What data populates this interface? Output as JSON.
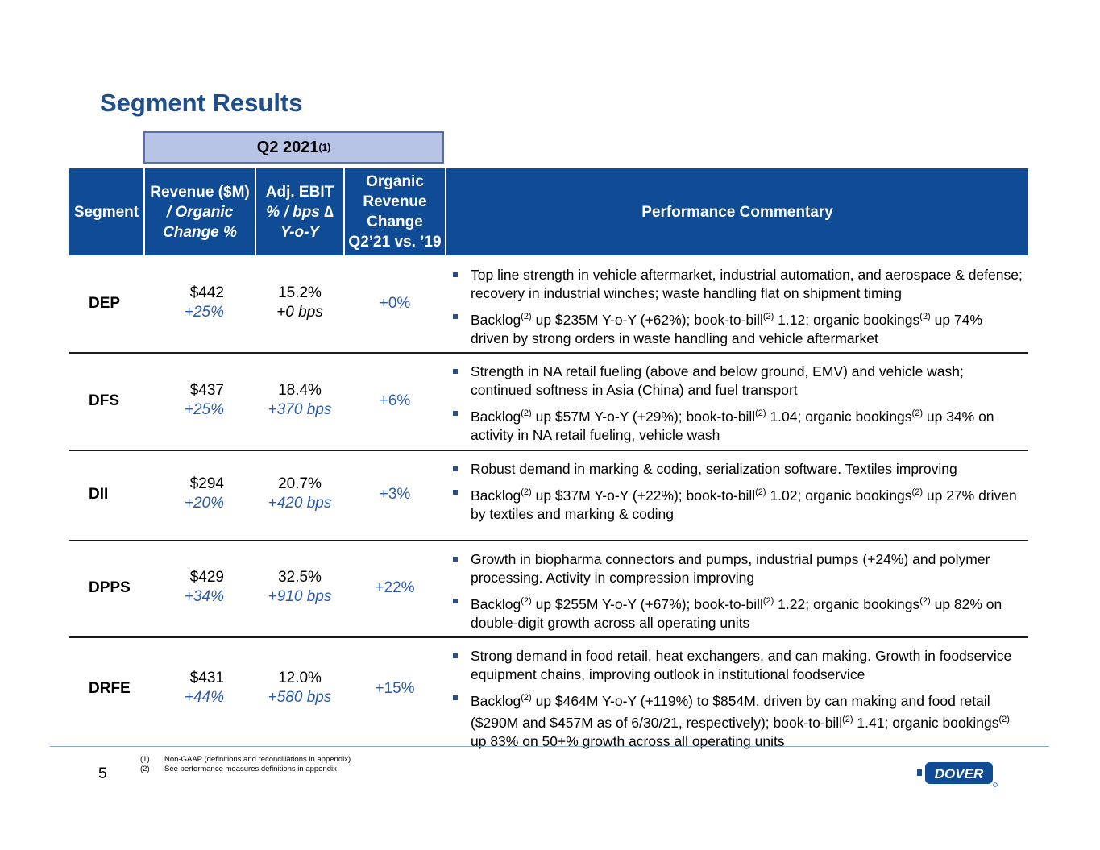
{
  "title": "Segment Results",
  "period": {
    "label": "Q2 2021",
    "note": "(1)"
  },
  "header": {
    "segment": "Segment",
    "revenue_line1": "Revenue ($M)",
    "revenue_line2": "/ Organic",
    "revenue_line3": "Change %",
    "ebit_line1": "Adj. EBIT",
    "ebit_line2": "% / bps ∆",
    "ebit_line3": "Y-o-Y",
    "organic_line1": "Organic",
    "organic_line2": "Revenue",
    "organic_line3": "Change",
    "organic_line4": "Q2’21 vs. ’19",
    "commentary": "Performance Commentary"
  },
  "rows": [
    {
      "segment": "DEP",
      "revenue": "$442",
      "organic_change": "+25%",
      "ebit": "15.2%",
      "ebit_bps": "+0 bps",
      "organic_vs19": "+0%",
      "b1": "Top line strength in vehicle aftermarket, industrial automation, and aerospace & defense; recovery in industrial winches; waste handling flat on shipment timing",
      "b2a": "Backlog",
      "b2b": " up $235M Y-o-Y (+62%); book-to-bill",
      "b2c": " 1.12; organic bookings",
      "b2d": " up 74% driven by strong orders in waste handling and vehicle aftermarket"
    },
    {
      "segment": "DFS",
      "revenue": "$437",
      "organic_change": "+25%",
      "ebit": "18.4%",
      "ebit_bps": "+370 bps",
      "organic_vs19": "+6%",
      "b1": "Strength in NA retail fueling (above and below ground, EMV) and vehicle wash; continued softness in Asia (China) and fuel transport",
      "b2a": "Backlog",
      "b2b": " up $57M Y-o-Y (+29%); book-to-bill",
      "b2c": " 1.04; organic bookings",
      "b2d": " up 34% on activity in NA retail fueling, vehicle wash"
    },
    {
      "segment": "DII",
      "revenue": "$294",
      "organic_change": "+20%",
      "ebit": "20.7%",
      "ebit_bps": "+420 bps",
      "organic_vs19": "+3%",
      "b1": "Robust demand in marking & coding, serialization software. Textiles improving",
      "b2a": "Backlog",
      "b2b": " up $37M Y-o-Y (+22%); book-to-bill",
      "b2c": " 1.02; organic bookings",
      "b2d": " up 27% driven by textiles and marking & coding"
    },
    {
      "segment": "DPPS",
      "revenue": "$429",
      "organic_change": "+34%",
      "ebit": "32.5%",
      "ebit_bps": "+910 bps",
      "organic_vs19": "+22%",
      "b1": "Growth in biopharma connectors and pumps, industrial pumps (+24%) and polymer processing. Activity in compression improving",
      "b2a": "Backlog",
      "b2b": " up $255M Y-o-Y (+67%); book-to-bill",
      "b2c": " 1.22; organic bookings",
      "b2d": " up 82% on double-digit growth across all operating units"
    },
    {
      "segment": "DRFE",
      "revenue": "$431",
      "organic_change": "+44%",
      "ebit": "12.0%",
      "ebit_bps": "+580 bps",
      "organic_vs19": "+15%",
      "b1": "Strong demand in food retail, heat exchangers, and can making. Growth in foodservice equipment chains, improving outlook in institutional foodservice",
      "b2a": "Backlog",
      "b2b": " up $464M Y-o-Y (+119%) to $854M, driven by can making and food retail ($290M and $457M as of 6/30/21, respectively); book-to-bill",
      "b2c": " 1.41; organic bookings",
      "b2d": " up 83% on 50+% growth across all operating units"
    }
  ],
  "sup2": "(2)",
  "footnotes": [
    {
      "num": "(1)",
      "text": "Non-GAAP (definitions and reconciliations in appendix)"
    },
    {
      "num": "(2)",
      "text": "See performance measures definitions in appendix"
    }
  ],
  "page_number": "5",
  "logo_text": "DOVER",
  "colors": {
    "title": "#1F4E8C",
    "header_bg": "#0F4C95",
    "accent": "#2A5AA8",
    "period_bg": "#B8C4E6"
  }
}
